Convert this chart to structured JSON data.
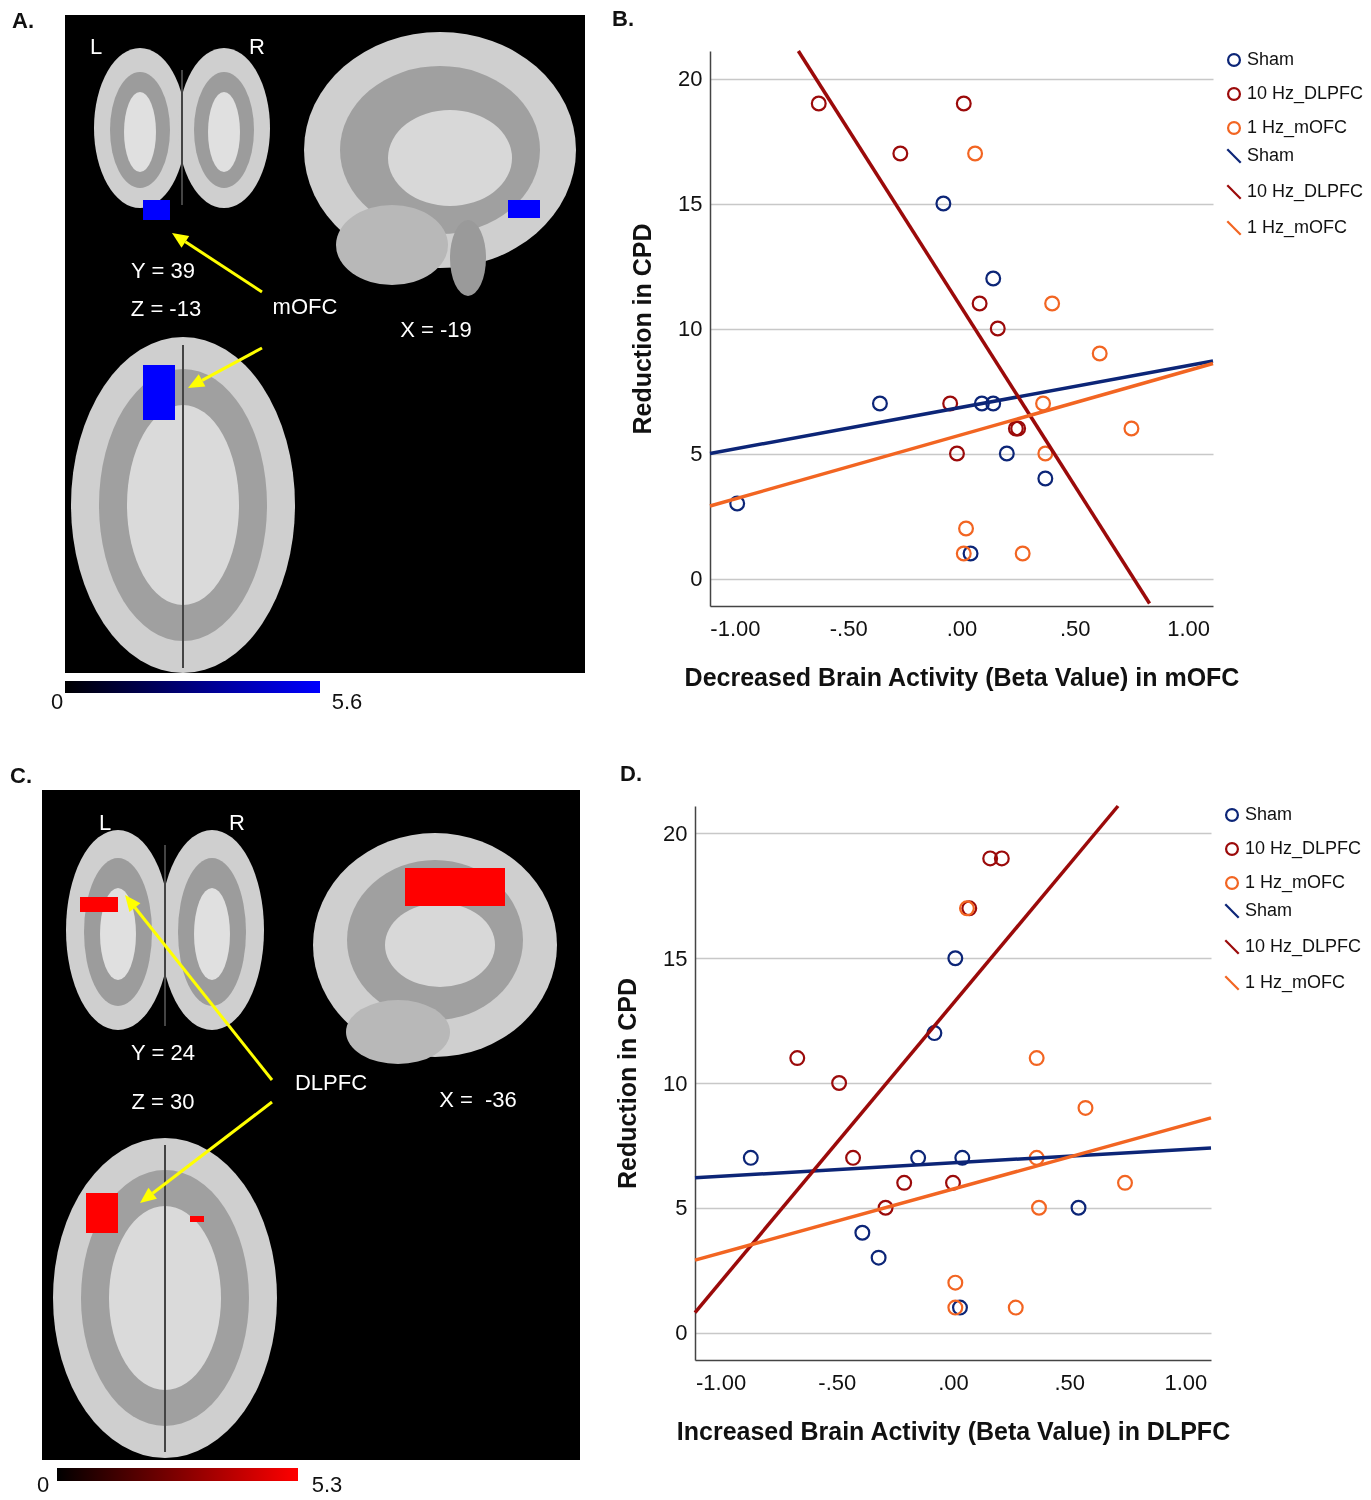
{
  "chart_data": [
    {
      "type": "other",
      "title": "A.",
      "annotations": [
        "L",
        "R",
        "Y = 39",
        "Z = -13",
        "mOFC",
        "X = -19",
        "0",
        "5.6"
      ]
    },
    {
      "type": "scatter",
      "title": "B.",
      "xlabel": "Decreased Brain Activity (Beta Value) in mOFC",
      "ylabel": "Reduction in CPD",
      "xlim": [
        -1.11,
        1.11
      ],
      "ylim": [
        -1.1,
        21.1
      ],
      "xticks": [
        {
          "value": -1,
          "label": "-1.00"
        },
        {
          "value": -0.5,
          "label": "-.50"
        },
        {
          "value": 0,
          "label": ".00"
        },
        {
          "value": 0.5,
          "label": ".50"
        },
        {
          "value": 1,
          "label": "1.00"
        }
      ],
      "yticks": [
        0,
        5,
        10,
        15,
        20
      ],
      "grid": "y",
      "legend": "right",
      "marker": "circle",
      "line_style": "solid",
      "series": [
        {
          "name": "Sham",
          "type": "scatter",
          "color": "#0c2577",
          "x": [
            -0.99,
            -0.36,
            -0.08,
            0.14,
            0.09,
            0.14,
            0.2,
            0.37,
            0.04
          ],
          "values": [
            3,
            7,
            15,
            12,
            7,
            7,
            5,
            4,
            1
          ]
        },
        {
          "name": "10 Hz_DLPFC",
          "type": "scatter",
          "color": "#9b0a0a",
          "x": [
            -0.63,
            -0.27,
            0.01,
            0.08,
            0.16,
            -0.05,
            -0.02,
            0.24,
            0.25
          ],
          "values": [
            19,
            17,
            19,
            11,
            10,
            7,
            5,
            6,
            6
          ]
        },
        {
          "name": "1 Hz_mOFC",
          "type": "scatter",
          "color": "#f26522",
          "x": [
            0.06,
            0.4,
            0.61,
            0.36,
            0.75,
            0.37,
            0.02,
            0.01,
            0.27
          ],
          "values": [
            17,
            11,
            9,
            7,
            6,
            5,
            2,
            1,
            1
          ]
        },
        {
          "name": "Sham",
          "type": "line",
          "marker": "none",
          "color": "#0c2577",
          "x": [
            -1.11,
            1.11
          ],
          "values": [
            5.0,
            8.7
          ]
        },
        {
          "name": "10 Hz_DLPFC",
          "type": "line",
          "marker": "none",
          "color": "#9b0a0a",
          "x": [
            -0.72,
            0.83
          ],
          "values": [
            21.1,
            -1.0
          ]
        },
        {
          "name": "1 Hz_mOFC",
          "type": "line",
          "marker": "none",
          "color": "#f26522",
          "x": [
            -1.11,
            1.11
          ],
          "values": [
            2.9,
            8.6
          ]
        }
      ]
    },
    {
      "type": "other",
      "title": "C.",
      "annotations": [
        "L",
        "R",
        "Y = 24",
        "Z = 30",
        "DLPFC",
        "X =  -36",
        "0",
        "5.3"
      ]
    },
    {
      "type": "scatter",
      "title": "D.",
      "xlabel": "Increased Brain Activity (Beta Value) in DLPFC",
      "ylabel": "Reduction in CPD",
      "xlim": [
        -1.11,
        1.11
      ],
      "ylim": [
        -1.1,
        21.1
      ],
      "xticks": [
        {
          "value": -1,
          "label": "-1.00"
        },
        {
          "value": -0.5,
          "label": "-.50"
        },
        {
          "value": 0,
          "label": ".00"
        },
        {
          "value": 0.5,
          "label": ".50"
        },
        {
          "value": 1,
          "label": "1.00"
        }
      ],
      "yticks": [
        0,
        5,
        10,
        15,
        20
      ],
      "grid": "y",
      "legend": "right",
      "marker": "circle",
      "line_style": "solid",
      "series": [
        {
          "name": "Sham",
          "type": "scatter",
          "color": "#0c2577",
          "x": [
            -0.87,
            -0.15,
            0.04,
            0.01,
            -0.08,
            -0.39,
            -0.32,
            0.54,
            0.03
          ],
          "values": [
            7,
            7,
            7,
            15,
            12,
            4,
            3,
            5,
            1
          ]
        },
        {
          "name": "10 Hz_DLPFC",
          "type": "scatter",
          "color": "#9b0a0a",
          "x": [
            -0.67,
            -0.49,
            -0.43,
            -0.21,
            0.0,
            -0.29,
            0.16,
            0.21,
            0.07
          ],
          "values": [
            11,
            10,
            7,
            6,
            6,
            5,
            19,
            19,
            17
          ]
        },
        {
          "name": "1 Hz_mOFC",
          "type": "scatter",
          "color": "#f26522",
          "x": [
            0.06,
            0.36,
            0.57,
            0.36,
            0.74,
            0.37,
            0.01,
            0.01,
            0.27
          ],
          "values": [
            17,
            11,
            9,
            7,
            6,
            5,
            2,
            1,
            1
          ]
        },
        {
          "name": "Sham",
          "type": "line",
          "marker": "none",
          "color": "#0c2577",
          "x": [
            -1.11,
            1.11
          ],
          "values": [
            6.2,
            7.4
          ]
        },
        {
          "name": "10 Hz_DLPFC",
          "type": "line",
          "marker": "none",
          "color": "#9b0a0a",
          "x": [
            -1.11,
            0.71
          ],
          "values": [
            0.8,
            21.1
          ]
        },
        {
          "name": "1 Hz_mOFC",
          "type": "line",
          "marker": "none",
          "color": "#f26522",
          "x": [
            -1.11,
            1.11
          ],
          "values": [
            2.9,
            8.6
          ]
        }
      ]
    }
  ]
}
